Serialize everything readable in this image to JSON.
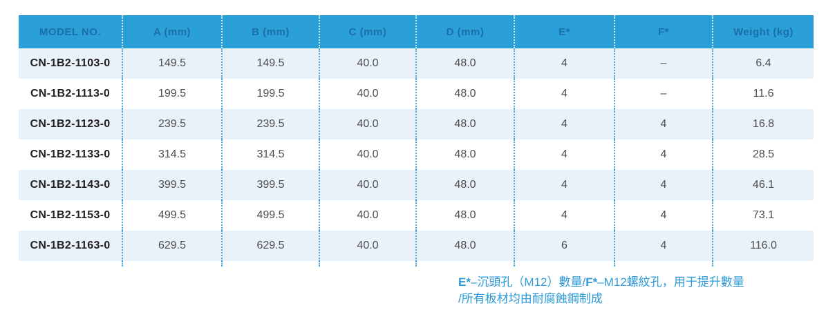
{
  "table": {
    "headers": [
      "MODEL NO.",
      "A (mm)",
      "B (mm)",
      "C (mm)",
      "D (mm)",
      "E*",
      "F*",
      "Weight (kg)"
    ],
    "rows": [
      {
        "model": "CN-1B2-1103-0",
        "a": "149.5",
        "b": "149.5",
        "c": "40.0",
        "d": "48.0",
        "e": "4",
        "f": "–",
        "weight": "6.4"
      },
      {
        "model": "CN-1B2-1113-0",
        "a": "199.5",
        "b": "199.5",
        "c": "40.0",
        "d": "48.0",
        "e": "4",
        "f": "–",
        "weight": "11.6"
      },
      {
        "model": "CN-1B2-1123-0",
        "a": "239.5",
        "b": "239.5",
        "c": "40.0",
        "d": "48.0",
        "e": "4",
        "f": "4",
        "weight": "16.8"
      },
      {
        "model": "CN-1B2-1133-0",
        "a": "314.5",
        "b": "314.5",
        "c": "40.0",
        "d": "48.0",
        "e": "4",
        "f": "4",
        "weight": "28.5"
      },
      {
        "model": "CN-1B2-1143-0",
        "a": "399.5",
        "b": "399.5",
        "c": "40.0",
        "d": "48.0",
        "e": "4",
        "f": "4",
        "weight": "46.1"
      },
      {
        "model": "CN-1B2-1153-0",
        "a": "499.5",
        "b": "499.5",
        "c": "40.0",
        "d": "48.0",
        "e": "4",
        "f": "4",
        "weight": "73.1"
      },
      {
        "model": "CN-1B2-1163-0",
        "a": "629.5",
        "b": "629.5",
        "c": "40.0",
        "d": "48.0",
        "e": "6",
        "f": "4",
        "weight": "116.0"
      }
    ]
  },
  "footnote": {
    "e_label": "E*",
    "e_text": "–沉頭孔（M12）數量/",
    "f_label": "F*",
    "f_text": "–M12螺紋孔，用于提升數量",
    "line2": "/所有板材均由耐腐蝕鋼制成"
  },
  "colors": {
    "header_bg": "#2b9fd7",
    "header_text": "#1a6fa6",
    "row_alt_bg": "#e9f2f9",
    "row_bg": "#ffffff",
    "body_text": "#4d4d4f",
    "model_text": "#221f20",
    "dotted_line_body": "#4fa8d5",
    "dotted_line_header": "#cfeaf8",
    "footnote_text": "#2e9ad6"
  }
}
